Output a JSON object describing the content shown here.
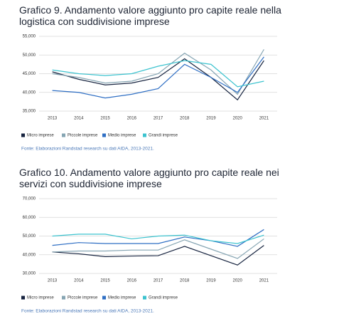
{
  "chart_data": [
    {
      "type": "line",
      "title": "Grafico 9. Andamento valore aggiunto pro capite reale nella logistica con suddivisione imprese",
      "categories": [
        "2013",
        "2014",
        "2015",
        "2016",
        "2017",
        "2018",
        "2019",
        "2020",
        "2021"
      ],
      "series": [
        {
          "name": "Micro imprese",
          "color": "#16233f",
          "values": [
            45500,
            43500,
            42000,
            42500,
            44000,
            49000,
            44000,
            38000,
            48500
          ]
        },
        {
          "name": "Piccole imprese",
          "color": "#86a5b3",
          "values": [
            45000,
            44000,
            42500,
            43000,
            45000,
            50500,
            46000,
            39500,
            51500
          ]
        },
        {
          "name": "Medio imprese",
          "color": "#2f6fc4",
          "values": [
            40500,
            40000,
            38500,
            39500,
            41000,
            47500,
            44000,
            40000,
            49500
          ]
        },
        {
          "name": "Grandi imprese",
          "color": "#3cc3cf",
          "values": [
            46000,
            45000,
            44500,
            45000,
            47000,
            48500,
            47500,
            41500,
            43000
          ]
        }
      ],
      "ylim": [
        35000,
        55000
      ],
      "yticks": [
        {
          "value": 35000,
          "label": "35,000"
        },
        {
          "value": 40000,
          "label": "40,000"
        },
        {
          "value": 45000,
          "label": "45,000"
        },
        {
          "value": 50000,
          "label": "50,000"
        },
        {
          "value": 55000,
          "label": "55,000"
        }
      ],
      "grid": true,
      "source": "Fonte: Elaborazioni Randstad research su dati AIDA, 2013-2021."
    },
    {
      "type": "line",
      "title": "Grafico 10. Andamento valore aggiunto pro capite reale nei servizi con suddivisione imprese",
      "categories": [
        "2013",
        "2014",
        "2015",
        "2016",
        "2017",
        "2018",
        "2019",
        "2020",
        "2021"
      ],
      "series": [
        {
          "name": "Micro imprese",
          "color": "#16233f",
          "values": [
            41500,
            40500,
            39000,
            39300,
            39500,
            44500,
            39500,
            34500,
            45000
          ]
        },
        {
          "name": "Piccole imprese",
          "color": "#86a5b3",
          "values": [
            41500,
            42000,
            42000,
            42500,
            42500,
            48000,
            43000,
            38000,
            48500
          ]
        },
        {
          "name": "Medio imprese",
          "color": "#2f6fc4",
          "values": [
            45000,
            46500,
            46000,
            46000,
            46000,
            49500,
            47500,
            44500,
            53500
          ]
        },
        {
          "name": "Grandi imprese",
          "color": "#3cc3cf",
          "values": [
            50000,
            51000,
            51000,
            48500,
            50000,
            50500,
            47500,
            46000,
            50500
          ]
        }
      ],
      "ylim": [
        30000,
        70000
      ],
      "yticks": [
        {
          "value": 30000,
          "label": "30,000"
        },
        {
          "value": 40000,
          "label": "40,000"
        },
        {
          "value": 50000,
          "label": "50,000"
        },
        {
          "value": 60000,
          "label": "60,000"
        },
        {
          "value": 70000,
          "label": "70,000"
        }
      ],
      "grid": true,
      "source": "Fonte: Elaborazioni Randstad research su dati AIDA, 2013-2021."
    }
  ]
}
